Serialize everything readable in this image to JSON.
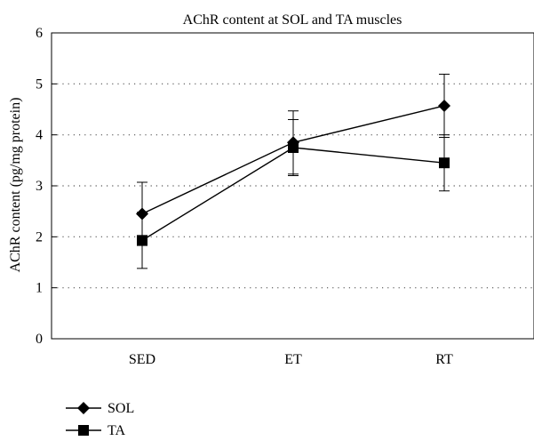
{
  "chart_data": {
    "type": "line",
    "title": "AChR content at SOL and TA muscles",
    "xlabel": "",
    "ylabel": "AChR content (pg/mg protein)",
    "categories": [
      "SED",
      "ET",
      "RT"
    ],
    "ylim": [
      0,
      6
    ],
    "yticks": [
      0,
      1,
      2,
      3,
      4,
      5,
      6
    ],
    "grid": "horizontal dotted",
    "legend_position": "bottom-left",
    "series": [
      {
        "name": "SOL",
        "marker": "diamond",
        "color": "#000000",
        "values": [
          2.45,
          3.85,
          4.57
        ],
        "errors": [
          0.62,
          0.62,
          0.62
        ]
      },
      {
        "name": "TA",
        "marker": "square",
        "color": "#000000",
        "values": [
          1.93,
          3.75,
          3.45
        ],
        "errors": [
          0.55,
          0.55,
          0.55
        ]
      }
    ]
  }
}
